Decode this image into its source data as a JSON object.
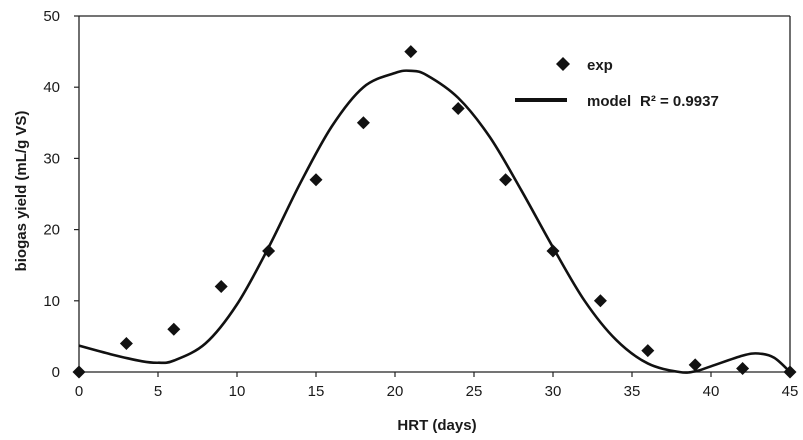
{
  "chart_data": {
    "type": "scatter",
    "xlabel": "HRT (days)",
    "ylabel": "biogas yield (mL/g VS)",
    "xlim": [
      0,
      45
    ],
    "ylim": [
      0,
      50
    ],
    "xticks": [
      "0",
      "5",
      "10",
      "15",
      "20",
      "25",
      "30",
      "35",
      "40",
      "45"
    ],
    "yticks": [
      "0",
      "10",
      "20",
      "30",
      "40",
      "50"
    ],
    "grid": false,
    "legend_position": "top-right",
    "series": [
      {
        "name": "exp",
        "kind": "markers",
        "marker": "diamond",
        "color": "#111111",
        "x": [
          0,
          3,
          6,
          9,
          12,
          15,
          18,
          21,
          24,
          27,
          30,
          33,
          36,
          39,
          42,
          45
        ],
        "y": [
          0,
          4,
          6,
          12,
          17,
          27,
          35,
          45,
          37,
          27,
          17,
          10,
          3,
          1,
          0.5,
          0
        ]
      },
      {
        "name": "model",
        "kind": "line",
        "color": "#111111",
        "x": [
          0,
          2,
          4,
          5,
          6,
          8,
          10,
          12,
          14,
          16,
          18,
          20,
          21,
          22,
          24,
          26,
          28,
          30,
          32,
          34,
          36,
          38,
          39,
          40,
          42,
          43,
          44,
          45
        ],
        "y": [
          3.7,
          2.5,
          1.5,
          1.3,
          1.6,
          4,
          9.5,
          17.5,
          26.5,
          34.5,
          40,
          42,
          42.3,
          41.7,
          38.5,
          33,
          25.5,
          17.5,
          10,
          4.5,
          1.2,
          0,
          0.1,
          0.8,
          2.3,
          2.6,
          2.0,
          0
        ]
      }
    ],
    "annotations": [
      "R² = 0.9937"
    ]
  }
}
